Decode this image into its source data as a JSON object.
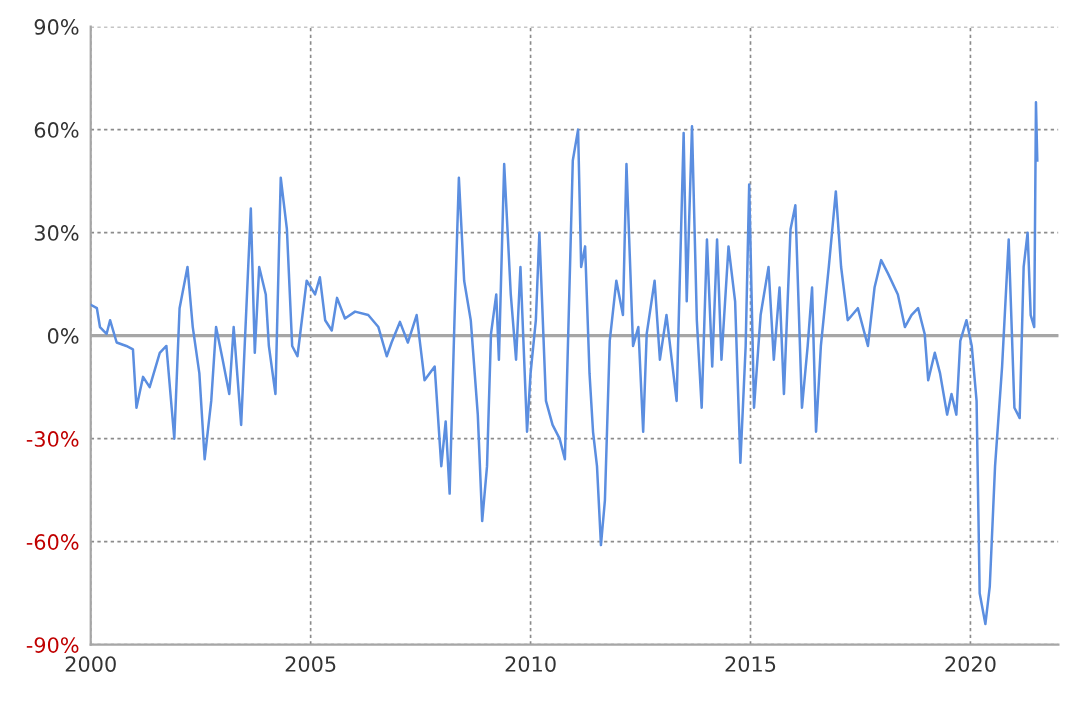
{
  "chart_data": {
    "type": "line",
    "x": [
      2000.0,
      2000.14,
      2000.21,
      2000.36,
      2000.44,
      2000.59,
      2000.81,
      2000.96,
      2001.04,
      2001.19,
      2001.34,
      2001.57,
      2001.72,
      2001.84,
      2001.9,
      2002.02,
      2002.2,
      2002.32,
      2002.47,
      2002.59,
      2002.74,
      2002.85,
      2003.0,
      2003.15,
      2003.25,
      2003.42,
      2003.64,
      2003.73,
      2003.83,
      2003.98,
      2004.05,
      2004.2,
      2004.32,
      2004.46,
      2004.58,
      2004.7,
      2004.91,
      2005.1,
      2005.21,
      2005.33,
      2005.48,
      2005.6,
      2005.78,
      2006.01,
      2006.31,
      2006.54,
      2006.73,
      2006.84,
      2007.03,
      2007.21,
      2007.41,
      2007.59,
      2007.82,
      2007.97,
      2008.07,
      2008.16,
      2008.27,
      2008.37,
      2008.49,
      2008.64,
      2008.8,
      2008.9,
      2009.01,
      2009.1,
      2009.22,
      2009.28,
      2009.4,
      2009.55,
      2009.67,
      2009.77,
      2009.92,
      2010.0,
      2010.12,
      2010.2,
      2010.35,
      2010.5,
      2010.66,
      2010.78,
      2010.88,
      2010.96,
      2011.08,
      2011.15,
      2011.24,
      2011.34,
      2011.42,
      2011.51,
      2011.6,
      2011.69,
      2011.8,
      2011.95,
      2012.1,
      2012.18,
      2012.33,
      2012.45,
      2012.56,
      2012.64,
      2012.82,
      2012.94,
      2013.09,
      2013.32,
      2013.48,
      2013.55,
      2013.67,
      2013.78,
      2013.89,
      2014.01,
      2014.13,
      2014.24,
      2014.34,
      2014.5,
      2014.65,
      2014.77,
      2014.89,
      2014.97,
      2015.08,
      2015.23,
      2015.41,
      2015.53,
      2015.66,
      2015.76,
      2015.91,
      2016.02,
      2016.17,
      2016.3,
      2016.4,
      2016.49,
      2016.6,
      2016.78,
      2016.94,
      2017.06,
      2017.21,
      2017.44,
      2017.67,
      2017.82,
      2017.97,
      2018.13,
      2018.35,
      2018.51,
      2018.66,
      2018.81,
      2018.96,
      2019.04,
      2019.19,
      2019.31,
      2019.47,
      2019.57,
      2019.68,
      2019.77,
      2019.91,
      2020.03,
      2020.14,
      2020.21,
      2020.34,
      2020.44,
      2020.56,
      2020.72,
      2020.87,
      2021.0,
      2021.12,
      2021.21,
      2021.3,
      2021.37,
      2021.45,
      2021.49,
      2021.52
    ],
    "series": [
      {
        "color": "#5b8ee0",
        "values": [
          9,
          8,
          2.5,
          0.5,
          4.5,
          -2,
          -3,
          -4,
          -21,
          -12,
          -15,
          -5,
          -3,
          -21,
          -30,
          8,
          20,
          2.5,
          -11,
          -36,
          -19,
          2.5,
          -7,
          -17,
          2.5,
          -26,
          37,
          -5,
          20,
          12,
          -3,
          -17,
          46,
          31,
          -3,
          -6,
          16,
          12,
          17,
          4.5,
          1.5,
          11,
          5,
          7,
          6,
          2.5,
          -6,
          -2,
          4,
          -2,
          6,
          -13,
          -9,
          -38,
          -25,
          -46,
          4.5,
          46,
          16,
          4.5,
          -23,
          -54,
          -38,
          0.5,
          12,
          -7,
          50,
          12,
          -7,
          20,
          -28,
          -11,
          4.5,
          30,
          -19,
          -26,
          -30,
          -36,
          12,
          51,
          60,
          20,
          26,
          -11,
          -28,
          -38,
          -61,
          -48,
          -1.5,
          16,
          6,
          50,
          -3,
          2.5,
          -28,
          0.5,
          16,
          -7,
          6,
          -19,
          59,
          10,
          61,
          4.5,
          -21,
          28,
          -9,
          28,
          -7,
          26,
          10,
          -37,
          -3,
          44,
          -21,
          6,
          20,
          -7,
          14,
          -17,
          31,
          38,
          -21,
          -3,
          14,
          -28,
          -3,
          20,
          42,
          20,
          4.5,
          8,
          -3,
          14,
          22,
          18,
          12,
          2.5,
          6,
          8,
          0.5,
          -13,
          -5,
          -11,
          -23,
          -17,
          -23,
          -1.5,
          4.5,
          -3,
          -19,
          -75,
          -84,
          -73,
          -38,
          -9,
          28,
          -21,
          -24,
          20,
          30,
          6,
          2.5,
          68,
          51
        ]
      }
    ],
    "xlim": [
      2000,
      2022
    ],
    "xticks": [
      2000,
      2005,
      2010,
      2015,
      2020
    ],
    "ylim": [
      -90,
      90
    ],
    "yticks": [
      {
        "value": -90,
        "label": "-90%"
      },
      {
        "value": -60,
        "label": "-60%"
      },
      {
        "value": -30,
        "label": "-30%"
      },
      {
        "value": 0,
        "label": "0%"
      },
      {
        "value": 30,
        "label": "30%"
      },
      {
        "value": 60,
        "label": "60%"
      },
      {
        "value": 90,
        "label": "90%"
      }
    ],
    "grid": true,
    "marker": "none",
    "line_style": "solid",
    "ref_lines": [
      {
        "axis": "y",
        "value": 0,
        "color": "#a6a6a6",
        "line_style": "solid"
      }
    ]
  }
}
